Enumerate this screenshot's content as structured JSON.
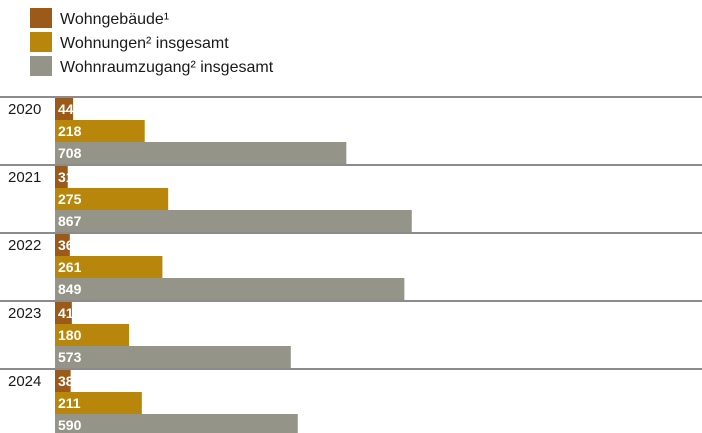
{
  "chart_data": {
    "type": "bar",
    "orientation": "horizontal",
    "categories": [
      "2020",
      "2021",
      "2022",
      "2023",
      "2024"
    ],
    "series": [
      {
        "name": "Wohngebäude¹",
        "color": "#9b5a1a",
        "values": [
          44,
          31,
          36,
          41,
          38
        ]
      },
      {
        "name": "Wohnungen² insgesamt",
        "color": "#b8860b",
        "values": [
          218,
          275,
          261,
          180,
          211
        ]
      },
      {
        "name": "Wohnraumzugang² insgesamt",
        "color": "#959488",
        "values": [
          708,
          867,
          849,
          573,
          590
        ]
      }
    ],
    "legend_position": "top-left",
    "grid": false
  }
}
